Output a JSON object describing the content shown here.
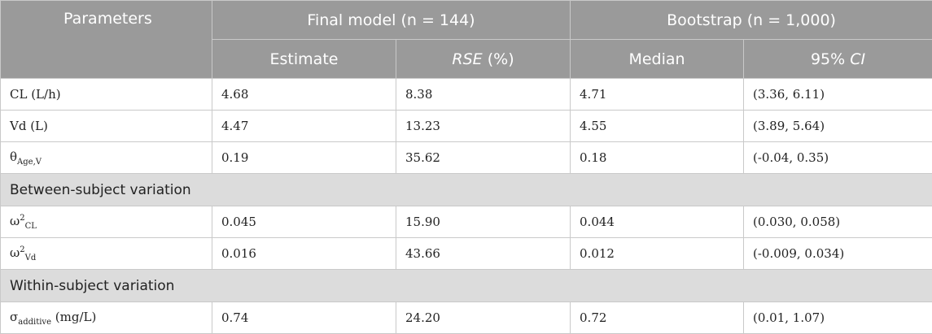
{
  "header": {
    "parameters": "Parameters",
    "final_model": "Final model (n = 144)",
    "bootstrap": "Bootstrap (n = 1,000)",
    "estimate": "Estimate",
    "rse_main": "RSE",
    "rse_unit": " (%)",
    "median": "Median",
    "ci_prefix": "95% ",
    "ci_main": "CI"
  },
  "rows": [
    {
      "param_main": "CL (L/h)",
      "param_sub": "",
      "param_sup": "",
      "param_suffix": "",
      "estimate": "4.68",
      "rse": "8.38",
      "median": "4.71",
      "ci": "(3.36, 6.11)"
    },
    {
      "param_main": "Vd (L)",
      "param_sub": "",
      "param_sup": "",
      "param_suffix": "",
      "estimate": "4.47",
      "rse": "13.23",
      "median": "4.55",
      "ci": "(3.89, 5.64)"
    },
    {
      "param_main": "θ",
      "param_sub": "Age,V",
      "param_sup": "",
      "param_suffix": "",
      "estimate": "0.19",
      "rse": "35.62",
      "median": "0.18",
      "ci": "(-0.04, 0.35)"
    }
  ],
  "section1": "Between-subject variation",
  "rows_bsv": [
    {
      "param_main": "ω",
      "param_sup": "2",
      "param_sub": "CL",
      "param_suffix": "",
      "estimate": "0.045",
      "rse": "15.90",
      "median": "0.044",
      "ci": "(0.030, 0.058)"
    },
    {
      "param_main": "ω",
      "param_sup": "2",
      "param_sub": "Vd",
      "param_suffix": "",
      "estimate": "0.016",
      "rse": "43.66",
      "median": "0.012",
      "ci": "(-0.009, 0.034)"
    }
  ],
  "section2": "Within-subject variation",
  "rows_wsv": [
    {
      "param_main": "σ",
      "param_sup": "",
      "param_sub": "additive",
      "param_suffix": " (mg/L)",
      "estimate": "0.74",
      "rse": "24.20",
      "median": "0.72",
      "ci": "(0.01, 1.07)"
    }
  ]
}
